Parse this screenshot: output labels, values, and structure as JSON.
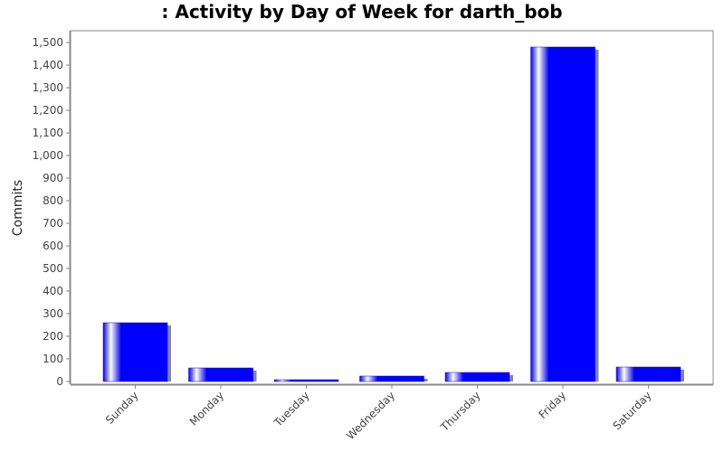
{
  "chart_data": {
    "type": "bar",
    "title": ": Activity by Day of Week for darth_bob",
    "y_label": "Commits",
    "categories": [
      "Sunday",
      "Monday",
      "Tuesday",
      "Wednesday",
      "Thursday",
      "Friday",
      "Saturday"
    ],
    "values": [
      260,
      60,
      8,
      24,
      40,
      1480,
      64
    ],
    "color": "#0000ff",
    "ylim": [
      0,
      1550
    ],
    "yticks": [
      0,
      100,
      200,
      300,
      400,
      500,
      600,
      700,
      800,
      900,
      {
        "value": 1000,
        "label": "1,000"
      },
      {
        "value": 1100,
        "label": "1,100"
      },
      {
        "value": 1200,
        "label": "1,200"
      },
      {
        "value": 1300,
        "label": "1,300"
      },
      {
        "value": 1400,
        "label": "1,400"
      },
      {
        "value": 1500,
        "label": "1,500"
      }
    ]
  }
}
